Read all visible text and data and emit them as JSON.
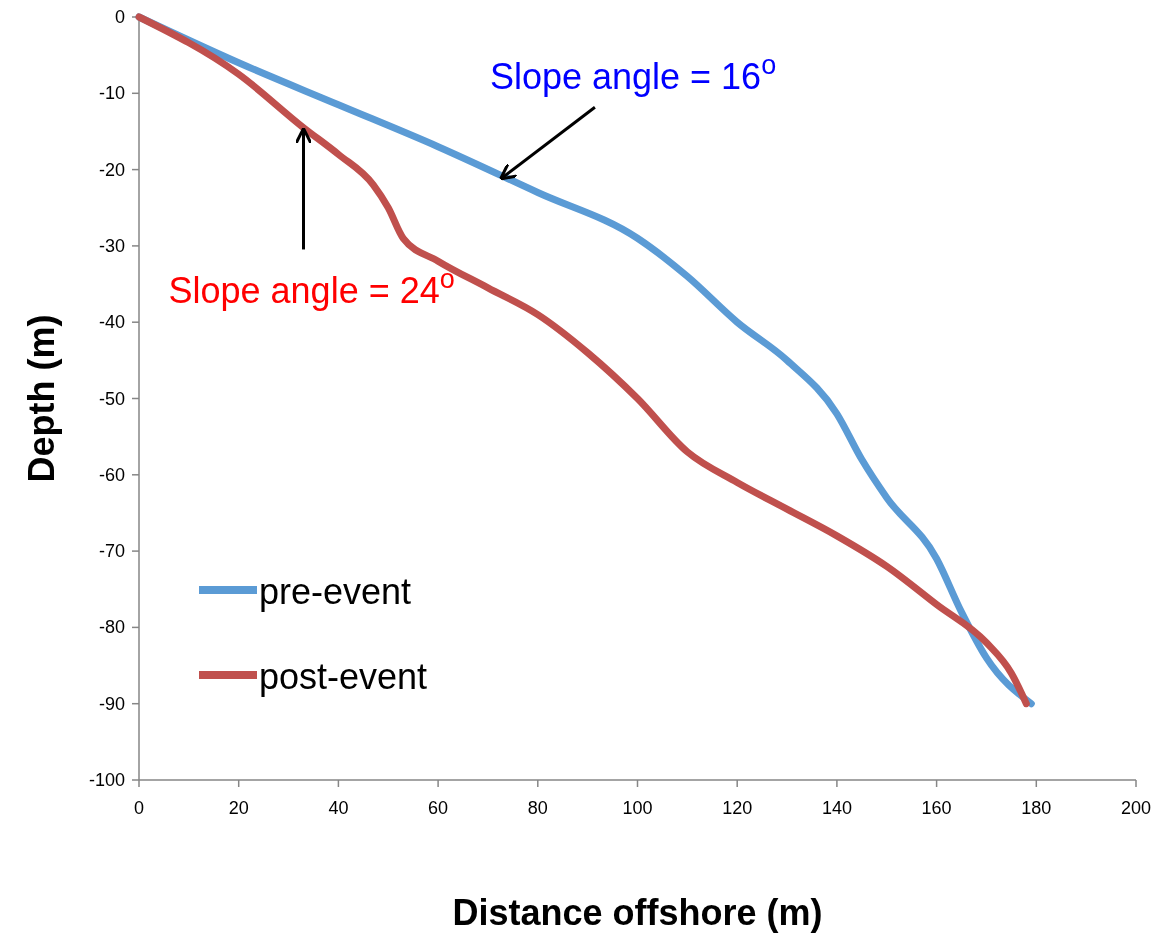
{
  "chart_data": {
    "type": "line",
    "xlabel": "Distance offshore (m)",
    "ylabel": "Depth (m)",
    "xlim": [
      0,
      200
    ],
    "xticks": [
      0,
      20,
      40,
      60,
      80,
      100,
      120,
      140,
      160,
      180,
      200
    ],
    "ylim": [
      -100,
      0
    ],
    "yticks": [
      -100,
      -90,
      -80,
      -70,
      -60,
      -50,
      -40,
      -30,
      -20,
      -10,
      0
    ],
    "grid": false,
    "legend": "bottom left",
    "marker": "none",
    "line_style": "solid",
    "series": [
      {
        "name": "pre-event",
        "color": "#5b9bd5",
        "x": [
          0,
          20,
          40,
          60,
          80,
          100,
          110,
          120,
          130,
          140,
          145,
          150,
          160,
          165,
          170,
          179
        ],
        "values": [
          0,
          -6,
          -11.5,
          -17,
          -23,
          -29,
          -34,
          -40,
          -45,
          -52,
          -58,
          -63,
          -71,
          -78,
          -84,
          -90
        ]
      },
      {
        "name": "post-event",
        "color": "#c0504d",
        "x": [
          0,
          20,
          33,
          40,
          47,
          50,
          53,
          60,
          70,
          80,
          90,
          100,
          110,
          120,
          130,
          140,
          150,
          160,
          170,
          175,
          178
        ],
        "values": [
          0,
          -7.5,
          -14.5,
          -18,
          -22,
          -25,
          -29,
          -32,
          -35.5,
          -39,
          -44,
          -50,
          -57,
          -61,
          -64.5,
          -68,
          -72,
          -77,
          -82,
          -86,
          -90
        ]
      }
    ],
    "annotations": [
      {
        "text": "Slope angle = 16$^{o}$",
        "x": 73,
        "y": -21
      },
      {
        "text": "Slope angle = 24$^{o}$",
        "x": 33,
        "y": -15
      }
    ]
  }
}
